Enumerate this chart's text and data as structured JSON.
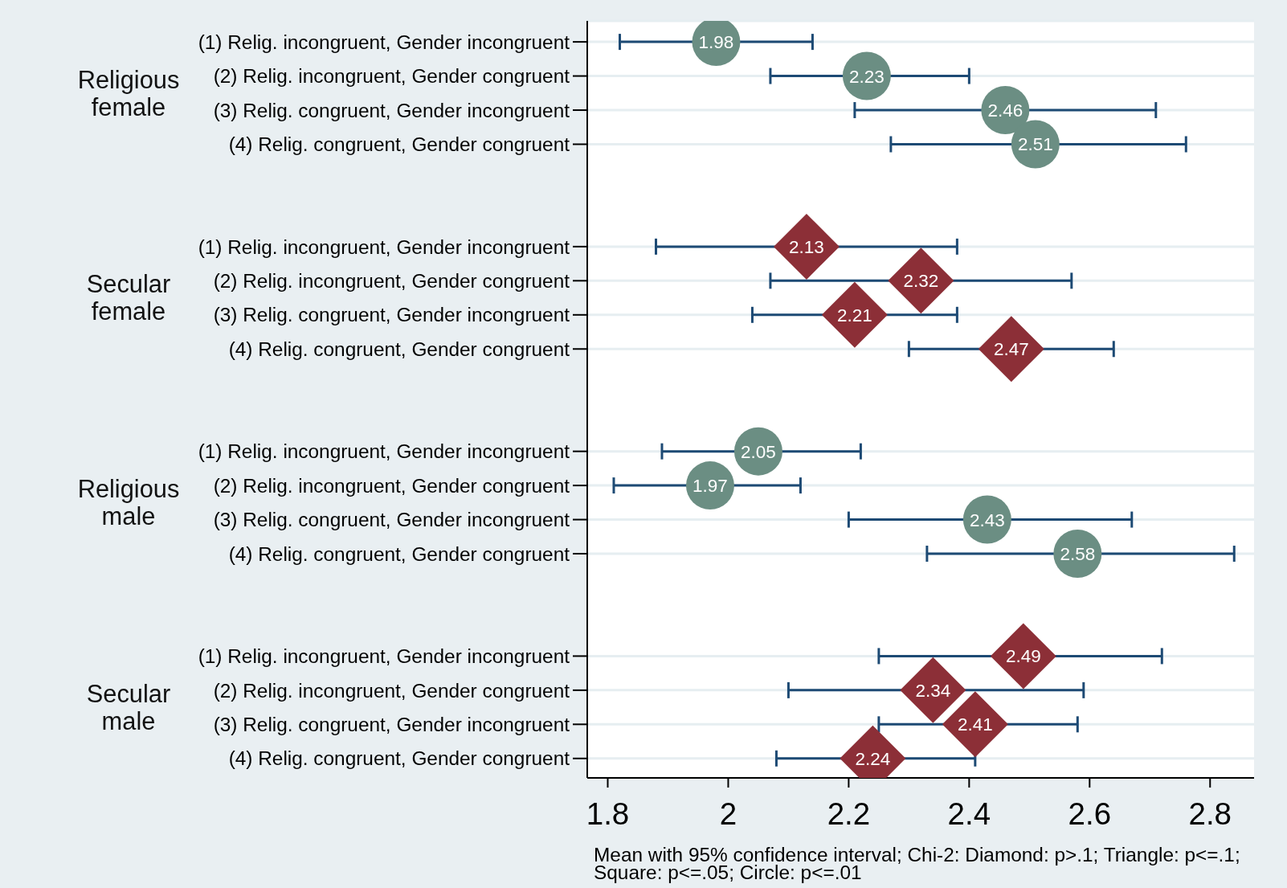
{
  "chart_data": {
    "type": "scatter",
    "orientation": "horizontal",
    "categories": [
      "(1) Relig. incongruent, Gender incongruent",
      "(2) Relig. incongruent, Gender congruent",
      "(3) Relig. congruent, Gender incongruent",
      "(4) Relig. congruent, Gender congruent",
      null,
      null,
      "(1) Relig. incongruent, Gender incongruent",
      "(2) Relig. incongruent, Gender congruent",
      "(3) Relig. congruent, Gender incongruent",
      "(4) Relig. congruent, Gender congruent",
      null,
      null,
      "(1) Relig. incongruent, Gender incongruent",
      "(2) Relig. incongruent, Gender congruent",
      "(3) Relig. congruent, Gender incongruent",
      "(4) Relig. congruent, Gender congruent",
      null,
      null,
      "(1) Relig. incongruent, Gender incongruent",
      "(2) Relig. incongruent, Gender congruent",
      "(3) Relig. congruent, Gender incongruent",
      "(4) Relig. congruent, Gender congruent"
    ],
    "series": [
      {
        "color": "#6b8e83",
        "marker": "circle",
        "values": [
          1.98,
          2.23,
          2.46,
          2.51,
          null,
          null,
          null,
          null,
          null,
          null,
          null,
          null,
          2.05,
          1.97,
          2.43,
          2.58,
          null,
          null,
          null,
          null,
          null,
          null
        ],
        "errors": [
          [
            1.82,
            2.14
          ],
          [
            2.07,
            2.4
          ],
          [
            2.21,
            2.71
          ],
          [
            2.27,
            2.76
          ],
          null,
          null,
          null,
          null,
          null,
          null,
          null,
          null,
          [
            1.89,
            2.22
          ],
          [
            1.81,
            2.12
          ],
          [
            2.2,
            2.67
          ],
          [
            2.33,
            2.84
          ],
          null,
          null,
          null,
          null,
          null,
          null
        ]
      },
      {
        "color": "#8c2f37",
        "marker": "diamond",
        "values": [
          null,
          null,
          null,
          null,
          null,
          null,
          2.13,
          2.32,
          2.21,
          2.47,
          null,
          null,
          null,
          null,
          null,
          null,
          null,
          null,
          2.49,
          2.34,
          2.41,
          2.24
        ],
        "errors": [
          null,
          null,
          null,
          null,
          null,
          null,
          [
            1.88,
            2.38
          ],
          [
            2.07,
            2.57
          ],
          [
            2.04,
            2.38
          ],
          [
            2.3,
            2.64
          ],
          null,
          null,
          null,
          null,
          null,
          null,
          null,
          null,
          [
            2.25,
            2.72
          ],
          [
            2.1,
            2.59
          ],
          [
            2.25,
            2.58
          ],
          [
            2.08,
            2.41
          ]
        ]
      }
    ],
    "xlim": [
      1.766,
      2.873
    ],
    "xticks": [
      1.8,
      2,
      2.2,
      2.4,
      2.6,
      2.8
    ],
    "grid": "y",
    "data_labels": true,
    "annotations": [
      "Religious female",
      "Secular female",
      "Religious male",
      "Secular male",
      "Mean with 95% confidence interval; Chi-2: Diamond: p>.1; Triangle: p<=.1; Square: p<=.05; Circle: p<=.01"
    ]
  }
}
